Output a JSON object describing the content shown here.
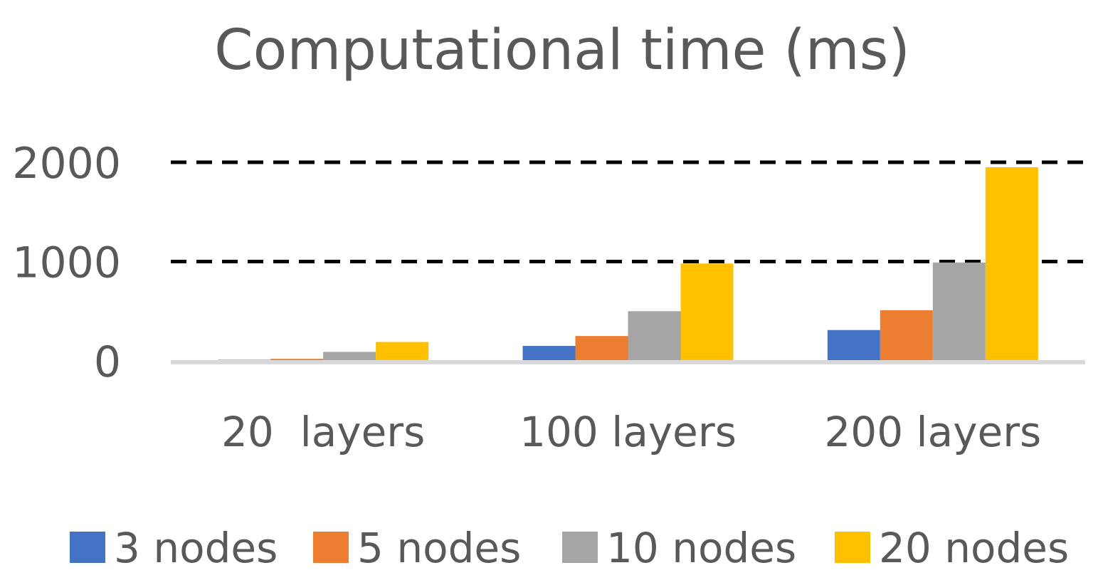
{
  "chart_data": {
    "type": "bar",
    "title": "Computational time (ms)",
    "xlabel": "",
    "ylabel": "",
    "categories": [
      "20  layers",
      "100 layers",
      "200 layers"
    ],
    "series": [
      {
        "name": "3 nodes",
        "color": "#4472C4",
        "values": [
          10,
          150,
          310
        ]
      },
      {
        "name": "5 nodes",
        "color": "#ED7D31",
        "values": [
          20,
          250,
          510
        ]
      },
      {
        "name": "10 nodes",
        "color": "#A5A5A5",
        "values": [
          90,
          500,
          990
        ]
      },
      {
        "name": "20 nodes",
        "color": "#FFC000",
        "values": [
          190,
          980,
          1950
        ]
      }
    ],
    "y_ticks": [
      "0",
      "1000",
      "2000"
    ],
    "ylim": [
      0,
      2000
    ],
    "grid": "dashed-horizontal",
    "legend_position": "bottom"
  }
}
